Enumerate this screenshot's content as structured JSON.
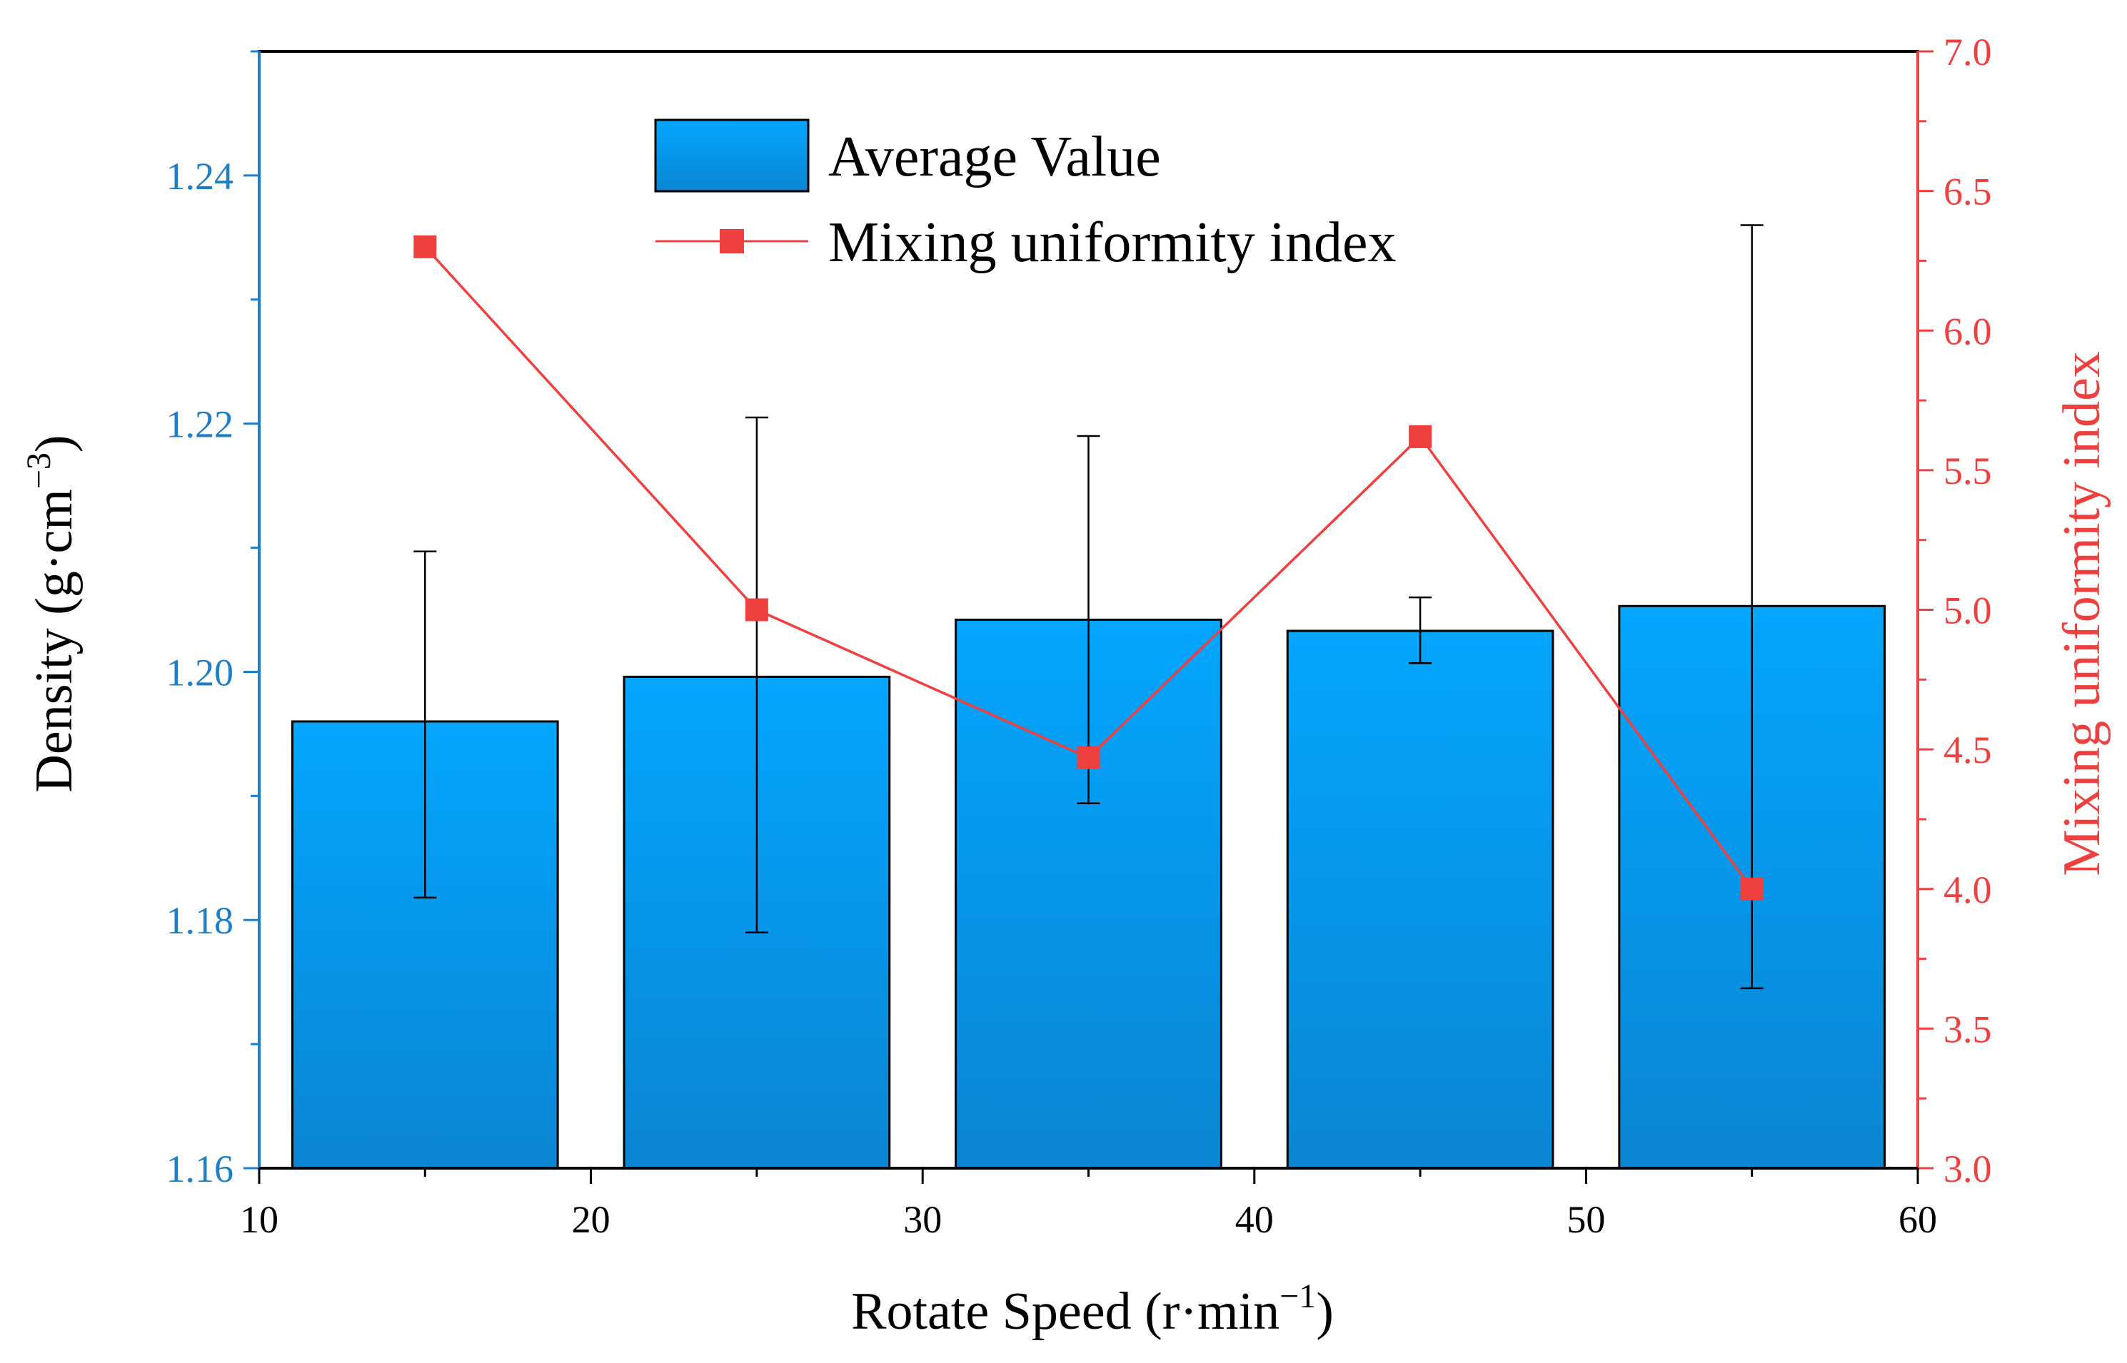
{
  "chart_data": {
    "type": "bar",
    "x": [
      15,
      25,
      35,
      45,
      55
    ],
    "xlabel": {
      "main": "Rotate Speed (r·min",
      "sup": "−1",
      "end": ")"
    },
    "ylabel_left": {
      "main": "Density (g·cm",
      "sup": "−3",
      "end": ")"
    },
    "ylabel_right": "Mixing uniformity index",
    "xlim": [
      10,
      60
    ],
    "ylim_left": [
      1.16,
      1.25
    ],
    "ylim_right": [
      3.0,
      7.0
    ],
    "x_ticks": [
      "10",
      "20",
      "30",
      "40",
      "50",
      "60"
    ],
    "y_left_ticks": [
      "1.16",
      "1.18",
      "1.20",
      "1.22",
      "1.24"
    ],
    "y_right_ticks": [
      "3.0",
      "3.5",
      "4.0",
      "4.5",
      "5.0",
      "5.5",
      "6.0",
      "6.5",
      "7.0"
    ],
    "grid": false,
    "legend_position": "top-center",
    "series": [
      {
        "name": "Average Value",
        "type": "bar",
        "axis": "left",
        "values": [
          1.196,
          1.1996,
          1.2042,
          1.2033,
          1.2053
        ],
        "error_low": [
          1.1818,
          1.179,
          1.1894,
          1.2007,
          1.1745
        ],
        "error_high": [
          1.2097,
          1.2205,
          1.219,
          1.206,
          1.236
        ],
        "color": "#0a9ae8"
      },
      {
        "name": "Mixing uniformity index",
        "type": "line",
        "axis": "right",
        "values": [
          6.3,
          5.0,
          4.47,
          5.62,
          4.0
        ],
        "color": "#ef4040"
      }
    ]
  }
}
